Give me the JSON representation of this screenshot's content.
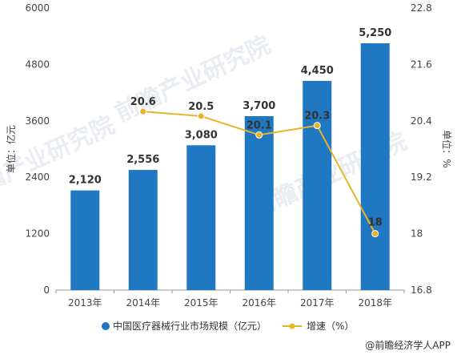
{
  "chart_data": {
    "type": "bar",
    "categories": [
      "2013年",
      "2014年",
      "2015年",
      "2016年",
      "2017年",
      "2018年"
    ],
    "series": [
      {
        "name": "中国医疗器械行业市场规模（亿元）",
        "type": "bar",
        "axis": "left",
        "color": "#1f78c1",
        "values": [
          2120,
          2556,
          3080,
          3700,
          4450,
          5250
        ],
        "labels": [
          "2,120",
          "2,556",
          "3,080",
          "3,700",
          "4,450",
          "5,250"
        ]
      },
      {
        "name": "增速（%）",
        "type": "line",
        "axis": "right",
        "color": "#e8b32a",
        "values": [
          null,
          20.6,
          20.5,
          20.1,
          20.3,
          18
        ],
        "labels": [
          "",
          "20.6",
          "20.5",
          "20.1",
          "20.3",
          "18"
        ]
      }
    ],
    "y_left": {
      "label": "单位：亿元",
      "ylim": [
        0,
        6000
      ],
      "ticks": [
        "0",
        "1200",
        "2400",
        "3600",
        "4800",
        "6000"
      ],
      "tick_values": [
        0,
        1200,
        2400,
        3600,
        4800,
        6000
      ]
    },
    "y_right": {
      "label": "单位：%",
      "ylim": [
        16.8,
        22.8
      ],
      "ticks": [
        "16.8",
        "18",
        "19.2",
        "20.4",
        "21.6",
        "22.8"
      ],
      "tick_values": [
        16.8,
        18,
        19.2,
        20.4,
        21.6,
        22.8
      ]
    },
    "grid": false,
    "legend_position": "bottom"
  },
  "watermark": "前瞻产业研究院",
  "source": "@前瞻经济学人APP",
  "colors": {
    "bar": "#1f78c1",
    "line": "#e8b32a",
    "axis": "#999999"
  }
}
